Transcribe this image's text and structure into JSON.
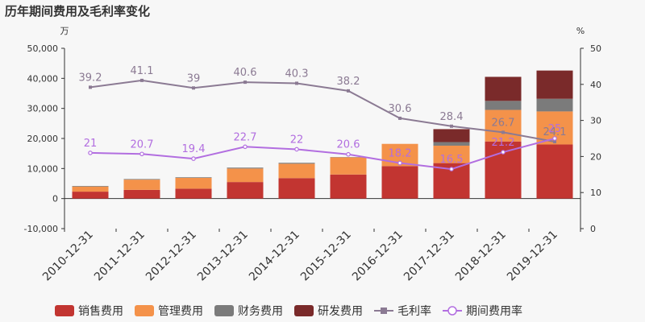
{
  "chart_data": {
    "type": "bar",
    "title": "历年期间费用及毛利率变化",
    "left_unit": "万",
    "right_unit": "%",
    "categories": [
      "2010-12-31",
      "2011-12-31",
      "2012-12-31",
      "2013-12-31",
      "2014-12-31",
      "2015-12-31",
      "2016-12-31",
      "2017-12-31",
      "2018-12-31",
      "2019-12-31"
    ],
    "left_axis": {
      "min": -10000,
      "max": 50000,
      "ticks": [
        -10000,
        0,
        10000,
        20000,
        30000,
        40000,
        50000
      ],
      "tick_labels": [
        "-10,000",
        "0",
        "10,000",
        "20,000",
        "30,000",
        "40,000",
        "50,000"
      ]
    },
    "right_axis": {
      "min": 0,
      "max": 50,
      "ticks": [
        0,
        10,
        20,
        30,
        40,
        50
      ],
      "tick_labels": [
        "0",
        "10",
        "20",
        "30",
        "40",
        "50"
      ]
    },
    "bar_series": [
      {
        "name": "销售费用",
        "color": "#c23531",
        "values": [
          2300,
          2900,
          3300,
          5500,
          6800,
          8000,
          10800,
          11800,
          19000,
          18000
        ]
      },
      {
        "name": "管理费用",
        "color": "#f4924a",
        "values": [
          1700,
          3400,
          3600,
          4500,
          4800,
          5700,
          7400,
          5800,
          10500,
          11000
        ]
      },
      {
        "name": "财务费用",
        "color": "#7b7b7b",
        "values": [
          200,
          200,
          200,
          300,
          300,
          100,
          0,
          1200,
          3000,
          4200
        ]
      },
      {
        "name": "研发费用",
        "color": "#7a2a2a",
        "values": [
          0,
          0,
          0,
          0,
          0,
          0,
          0,
          4300,
          8000,
          9400
        ]
      }
    ],
    "line_series": [
      {
        "name": "毛利率",
        "color": "#8b7a93",
        "marker": "square",
        "values": [
          39.2,
          41.1,
          39,
          40.6,
          40.3,
          38.2,
          30.6,
          28.4,
          26.7,
          24.1
        ],
        "labels": [
          "39.2",
          "41.1",
          "39",
          "40.6",
          "40.3",
          "38.2",
          "30.6",
          "28.4",
          "26.7",
          "24.1"
        ]
      },
      {
        "name": "期间费用率",
        "color": "#b26ee0",
        "marker": "circle",
        "values": [
          21,
          20.7,
          19.4,
          22.7,
          22,
          20.6,
          18.2,
          16.5,
          21.2,
          25
        ],
        "labels": [
          "21",
          "20.7",
          "19.4",
          "22.7",
          "22",
          "20.6",
          "18.2",
          "16.5",
          "21.2",
          "25"
        ]
      }
    ],
    "legend": {
      "placement": "bottom"
    },
    "grid": false
  }
}
